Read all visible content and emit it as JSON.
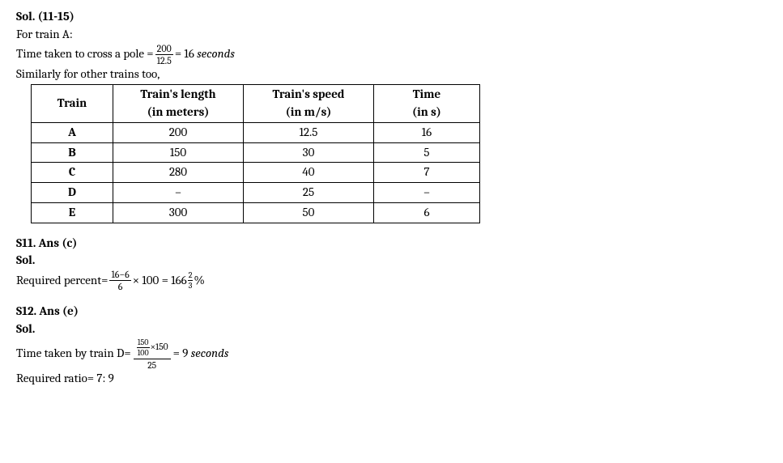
{
  "heading1": "Sol. (11-15)",
  "lineA": "For train A:",
  "cross_label": "Time taken to cross a pole =",
  "cross_frac_num": "200",
  "cross_frac_den": "12.5",
  "cross_eq": "= 16",
  "cross_unit": "seconds",
  "lineSim": "Similarly for other trains too,",
  "table": {
    "headers": {
      "c0": "Train",
      "c1a": "Train's length",
      "c1b": "(in meters)",
      "c2a": "Train's speed",
      "c2b": "(in m/s)",
      "c3a": "Time",
      "c3b": "(in s)"
    },
    "rows": [
      {
        "c0": "A",
        "c1": "200",
        "c2": "12.5",
        "c3": "16"
      },
      {
        "c0": "B",
        "c1": "150",
        "c2": "30",
        "c3": "5"
      },
      {
        "c0": "C",
        "c1": "280",
        "c2": "40",
        "c3": "7"
      },
      {
        "c0": "D",
        "c1": "–",
        "c2": "25",
        "c3": "–"
      },
      {
        "c0": "E",
        "c1": "300",
        "c2": "50",
        "c3": "6"
      }
    ]
  },
  "s11": {
    "title": "S11. Ans (c)",
    "sol": "Sol.",
    "label": "Required percent=",
    "frac_num": "16−6",
    "frac_den": "6",
    "mid": "× 100 = 166",
    "mixed_num": "2",
    "mixed_den": "3",
    "pct": "%"
  },
  "s12": {
    "title": "S12. Ans (e)",
    "sol": "Sol.",
    "label": "Time taken by train D=",
    "top_inner_num": "150",
    "top_inner_den": "100",
    "top_mult": "×150",
    "bot": "25",
    "eq": "= 9",
    "unit": "seconds",
    "ratio": "Required ratio= 7: 9"
  }
}
